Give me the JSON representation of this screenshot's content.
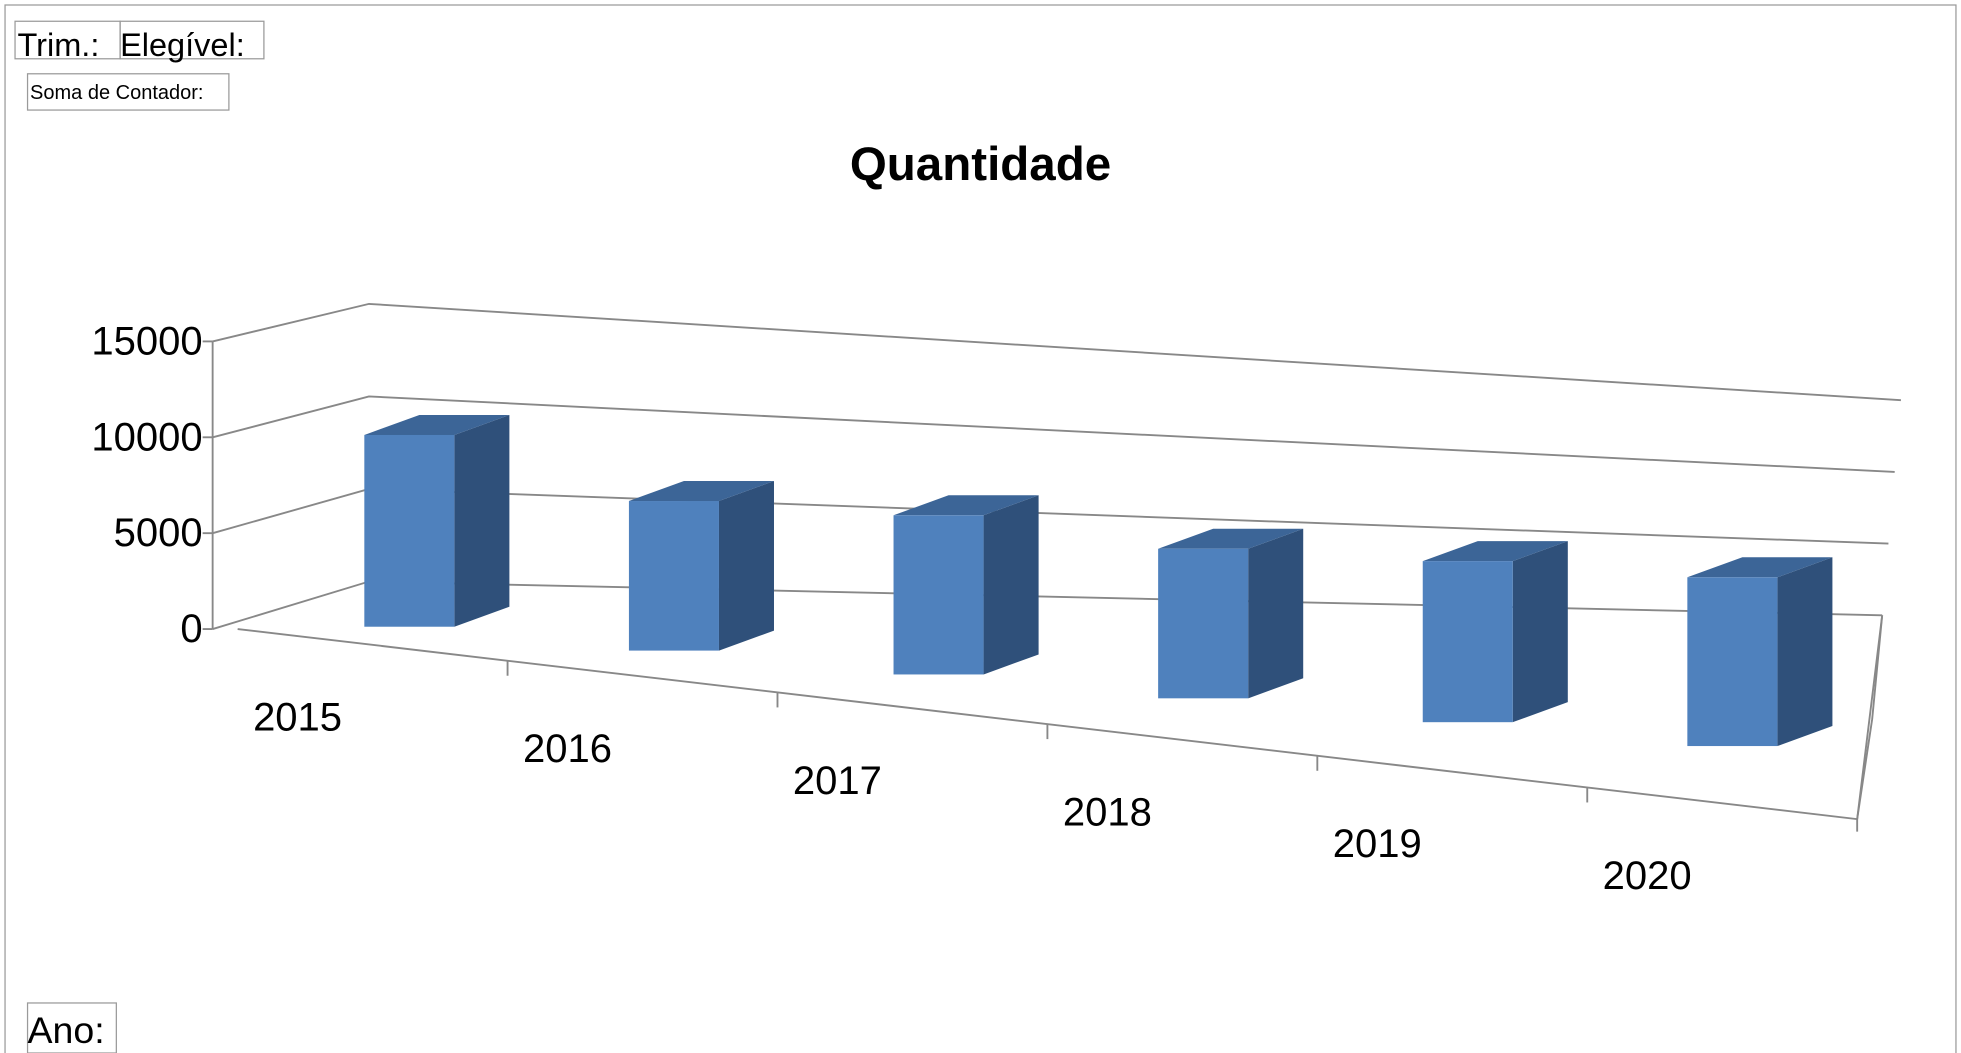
{
  "filters": {
    "trim": "Trim.:",
    "elegivel": "Elegível:",
    "soma": "Soma de Contador:",
    "ano": "Ano:"
  },
  "chart_data": {
    "type": "bar3d",
    "title": "Quantidade",
    "categories": [
      "2015",
      "2016",
      "2017",
      "2018",
      "2019",
      "2020"
    ],
    "values": [
      10000,
      7800,
      8300,
      7800,
      8400,
      8800
    ],
    "color": "#4f81bd",
    "ylim": [
      0,
      15000
    ],
    "yticks": [
      0,
      5000,
      10000,
      15000
    ],
    "grid": true
  }
}
